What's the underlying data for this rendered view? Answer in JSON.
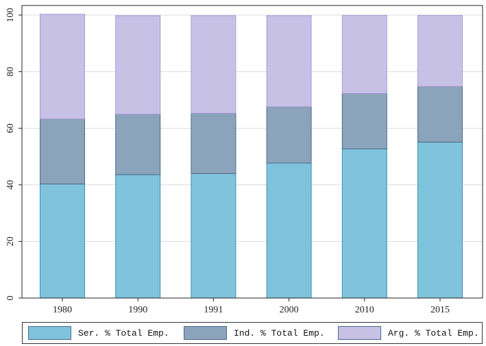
{
  "chart_data": {
    "type": "bar",
    "stacked": true,
    "categories": [
      "1980",
      "1990",
      "1991",
      "2000",
      "2010",
      "2015"
    ],
    "series": [
      {
        "name": "Ser. % Total Emp.",
        "values": [
          40.3,
          43.6,
          44.0,
          47.7,
          52.7,
          55.1
        ],
        "color": "#7fc3dc"
      },
      {
        "name": "Ind. % Total Emp.",
        "values": [
          23.0,
          21.4,
          21.3,
          19.9,
          19.6,
          19.7
        ],
        "color": "#8ba4bb"
      },
      {
        "name": "Arg. % Total Emp.",
        "values": [
          37.0,
          34.8,
          34.5,
          32.2,
          27.6,
          25.1
        ],
        "color": "#c8c1e6"
      }
    ],
    "yticks": [
      0,
      20,
      40,
      60,
      80,
      100
    ],
    "ylim": [
      0,
      100
    ],
    "grid": true,
    "legend_position": "bottom",
    "title": "",
    "xlabel": "",
    "ylabel": ""
  }
}
